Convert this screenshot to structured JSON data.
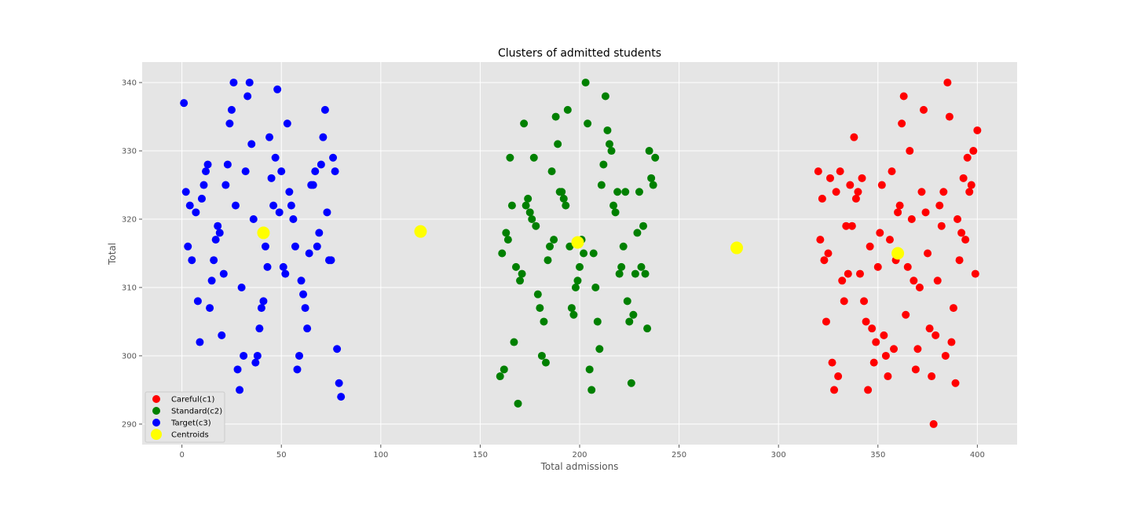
{
  "chart_data": {
    "type": "scatter",
    "title": "Clusters of admitted students",
    "xlabel": "Total admissions",
    "ylabel": "Total",
    "xlim": [
      -20,
      420
    ],
    "ylim": [
      287,
      343
    ],
    "xticks": [
      0,
      50,
      100,
      150,
      200,
      250,
      300,
      350,
      400
    ],
    "yticks": [
      290,
      300,
      310,
      320,
      330,
      340
    ],
    "grid": true,
    "background": "#e5e5e5",
    "legend_position": "lower-left",
    "series": [
      {
        "name": "Careful(c1)",
        "color": "#ff0000",
        "points": [
          [
            320,
            327
          ],
          [
            321,
            317
          ],
          [
            322,
            323
          ],
          [
            323,
            314
          ],
          [
            324,
            305
          ],
          [
            325,
            315
          ],
          [
            326,
            326
          ],
          [
            327,
            299
          ],
          [
            328,
            295
          ],
          [
            329,
            324
          ],
          [
            330,
            297
          ],
          [
            331,
            327
          ],
          [
            332,
            311
          ],
          [
            333,
            308
          ],
          [
            334,
            319
          ],
          [
            335,
            312
          ],
          [
            336,
            325
          ],
          [
            337,
            319
          ],
          [
            338,
            332
          ],
          [
            339,
            323
          ],
          [
            340,
            324
          ],
          [
            341,
            312
          ],
          [
            342,
            326
          ],
          [
            343,
            308
          ],
          [
            344,
            305
          ],
          [
            345,
            295
          ],
          [
            346,
            316
          ],
          [
            347,
            304
          ],
          [
            348,
            299
          ],
          [
            349,
            302
          ],
          [
            350,
            313
          ],
          [
            351,
            318
          ],
          [
            352,
            325
          ],
          [
            353,
            303
          ],
          [
            354,
            300
          ],
          [
            355,
            297
          ],
          [
            356,
            317
          ],
          [
            357,
            327
          ],
          [
            358,
            301
          ],
          [
            359,
            314
          ],
          [
            360,
            321
          ],
          [
            361,
            322
          ],
          [
            362,
            334
          ],
          [
            363,
            338
          ],
          [
            364,
            306
          ],
          [
            365,
            313
          ],
          [
            366,
            330
          ],
          [
            367,
            320
          ],
          [
            368,
            311
          ],
          [
            369,
            298
          ],
          [
            370,
            301
          ],
          [
            371,
            310
          ],
          [
            372,
            324
          ],
          [
            373,
            336
          ],
          [
            374,
            321
          ],
          [
            375,
            315
          ],
          [
            376,
            304
          ],
          [
            377,
            297
          ],
          [
            378,
            290
          ],
          [
            379,
            303
          ],
          [
            380,
            311
          ],
          [
            381,
            322
          ],
          [
            382,
            319
          ],
          [
            383,
            324
          ],
          [
            384,
            300
          ],
          [
            385,
            340
          ],
          [
            386,
            335
          ],
          [
            387,
            302
          ],
          [
            388,
            307
          ],
          [
            389,
            296
          ],
          [
            390,
            320
          ],
          [
            391,
            314
          ],
          [
            392,
            318
          ],
          [
            393,
            326
          ],
          [
            394,
            317
          ],
          [
            395,
            329
          ],
          [
            396,
            324
          ],
          [
            397,
            325
          ],
          [
            398,
            330
          ],
          [
            399,
            312
          ],
          [
            400,
            333
          ]
        ]
      },
      {
        "name": "Standard(c2)",
        "color": "#008000",
        "points": [
          [
            160,
            297
          ],
          [
            161,
            315
          ],
          [
            162,
            298
          ],
          [
            163,
            318
          ],
          [
            164,
            317
          ],
          [
            165,
            329
          ],
          [
            166,
            322
          ],
          [
            167,
            302
          ],
          [
            168,
            313
          ],
          [
            169,
            293
          ],
          [
            170,
            311
          ],
          [
            171,
            312
          ],
          [
            172,
            334
          ],
          [
            173,
            322
          ],
          [
            174,
            323
          ],
          [
            175,
            321
          ],
          [
            176,
            320
          ],
          [
            177,
            329
          ],
          [
            178,
            319
          ],
          [
            179,
            309
          ],
          [
            180,
            307
          ],
          [
            181,
            300
          ],
          [
            182,
            305
          ],
          [
            183,
            299
          ],
          [
            184,
            314
          ],
          [
            185,
            316
          ],
          [
            186,
            327
          ],
          [
            187,
            317
          ],
          [
            188,
            335
          ],
          [
            189,
            331
          ],
          [
            190,
            324
          ],
          [
            191,
            324
          ],
          [
            192,
            323
          ],
          [
            193,
            322
          ],
          [
            194,
            336
          ],
          [
            195,
            316
          ],
          [
            196,
            307
          ],
          [
            197,
            306
          ],
          [
            198,
            310
          ],
          [
            199,
            311
          ],
          [
            200,
            313
          ],
          [
            201,
            317
          ],
          [
            202,
            315
          ],
          [
            203,
            340
          ],
          [
            204,
            334
          ],
          [
            205,
            298
          ],
          [
            206,
            295
          ],
          [
            207,
            315
          ],
          [
            208,
            310
          ],
          [
            209,
            305
          ],
          [
            210,
            301
          ],
          [
            211,
            325
          ],
          [
            212,
            328
          ],
          [
            213,
            338
          ],
          [
            214,
            333
          ],
          [
            215,
            331
          ],
          [
            216,
            330
          ],
          [
            217,
            322
          ],
          [
            218,
            321
          ],
          [
            219,
            324
          ],
          [
            220,
            312
          ],
          [
            221,
            313
          ],
          [
            222,
            316
          ],
          [
            223,
            324
          ],
          [
            224,
            308
          ],
          [
            225,
            305
          ],
          [
            226,
            296
          ],
          [
            227,
            306
          ],
          [
            228,
            312
          ],
          [
            229,
            318
          ],
          [
            230,
            324
          ],
          [
            231,
            313
          ],
          [
            232,
            319
          ],
          [
            233,
            312
          ],
          [
            234,
            304
          ],
          [
            235,
            330
          ],
          [
            236,
            326
          ],
          [
            237,
            325
          ],
          [
            238,
            329
          ]
        ]
      },
      {
        "name": "Target(c3)",
        "color": "#0000ff",
        "points": [
          [
            1,
            337
          ],
          [
            2,
            324
          ],
          [
            3,
            316
          ],
          [
            4,
            322
          ],
          [
            5,
            314
          ],
          [
            7,
            321
          ],
          [
            8,
            308
          ],
          [
            9,
            302
          ],
          [
            10,
            323
          ],
          [
            11,
            325
          ],
          [
            12,
            327
          ],
          [
            13,
            328
          ],
          [
            14,
            307
          ],
          [
            15,
            311
          ],
          [
            16,
            314
          ],
          [
            17,
            317
          ],
          [
            18,
            319
          ],
          [
            19,
            318
          ],
          [
            20,
            303
          ],
          [
            21,
            312
          ],
          [
            22,
            325
          ],
          [
            23,
            328
          ],
          [
            24,
            334
          ],
          [
            25,
            336
          ],
          [
            26,
            340
          ],
          [
            27,
            322
          ],
          [
            28,
            298
          ],
          [
            29,
            295
          ],
          [
            30,
            310
          ],
          [
            31,
            300
          ],
          [
            32,
            327
          ],
          [
            33,
            338
          ],
          [
            34,
            340
          ],
          [
            35,
            331
          ],
          [
            36,
            320
          ],
          [
            37,
            299
          ],
          [
            38,
            300
          ],
          [
            39,
            304
          ],
          [
            40,
            307
          ],
          [
            41,
            308
          ],
          [
            42,
            316
          ],
          [
            43,
            313
          ],
          [
            44,
            332
          ],
          [
            45,
            326
          ],
          [
            46,
            322
          ],
          [
            47,
            329
          ],
          [
            48,
            339
          ],
          [
            49,
            321
          ],
          [
            50,
            327
          ],
          [
            51,
            313
          ],
          [
            52,
            312
          ],
          [
            53,
            334
          ],
          [
            54,
            324
          ],
          [
            55,
            322
          ],
          [
            56,
            320
          ],
          [
            57,
            316
          ],
          [
            58,
            298
          ],
          [
            59,
            300
          ],
          [
            60,
            311
          ],
          [
            61,
            309
          ],
          [
            62,
            307
          ],
          [
            63,
            304
          ],
          [
            64,
            315
          ],
          [
            65,
            325
          ],
          [
            66,
            325
          ],
          [
            67,
            327
          ],
          [
            68,
            316
          ],
          [
            69,
            318
          ],
          [
            70,
            328
          ],
          [
            71,
            332
          ],
          [
            72,
            336
          ],
          [
            73,
            321
          ],
          [
            74,
            314
          ],
          [
            75,
            314
          ],
          [
            76,
            329
          ],
          [
            77,
            327
          ],
          [
            78,
            301
          ],
          [
            79,
            296
          ],
          [
            80,
            294
          ]
        ]
      },
      {
        "name": "Centroids",
        "color": "#ffff00",
        "points": [
          [
            41,
            318
          ],
          [
            120,
            318.2
          ],
          [
            199,
            316.6
          ],
          [
            279,
            315.8
          ],
          [
            360,
            315
          ]
        ]
      }
    ]
  }
}
